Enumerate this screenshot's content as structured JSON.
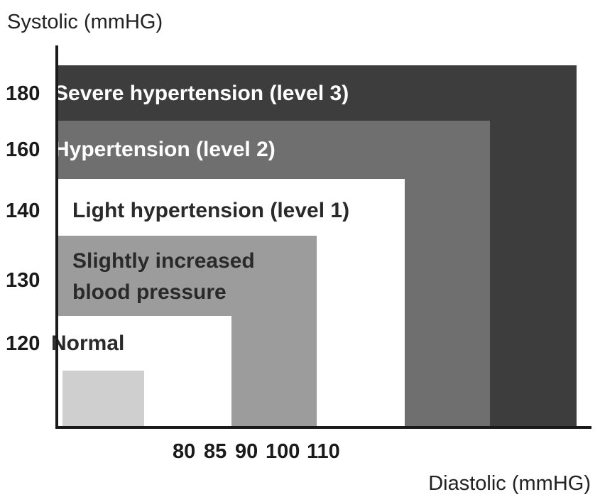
{
  "axes": {
    "y_title": "Systolic (mmHG)",
    "x_title": "Diastolic (mmHG)",
    "y_ticks": [
      "180",
      "160",
      "140",
      "130",
      "120"
    ],
    "x_ticks": [
      "80",
      "85",
      "90",
      "100",
      "110"
    ]
  },
  "zones": [
    {
      "label": "Severe hypertension (level 3)",
      "color": "#3d3d3d",
      "text_color": "#ffffff"
    },
    {
      "label": "Hypertension (level 2)",
      "color": "#6f6f6f",
      "text_color": "#ffffff"
    },
    {
      "label": "Light hypertension (level 1)",
      "color": "#ffffff",
      "text_color": "#2a2a2a"
    },
    {
      "label_lines": [
        "Slightly increased",
        "blood pressure"
      ],
      "color": "#9c9c9c",
      "text_color": "#2a2a2a"
    },
    {
      "label": "Normal",
      "color": "#ffffff",
      "text_color": "#2a2a2a"
    },
    {
      "color": "#cfcfcf"
    }
  ]
}
